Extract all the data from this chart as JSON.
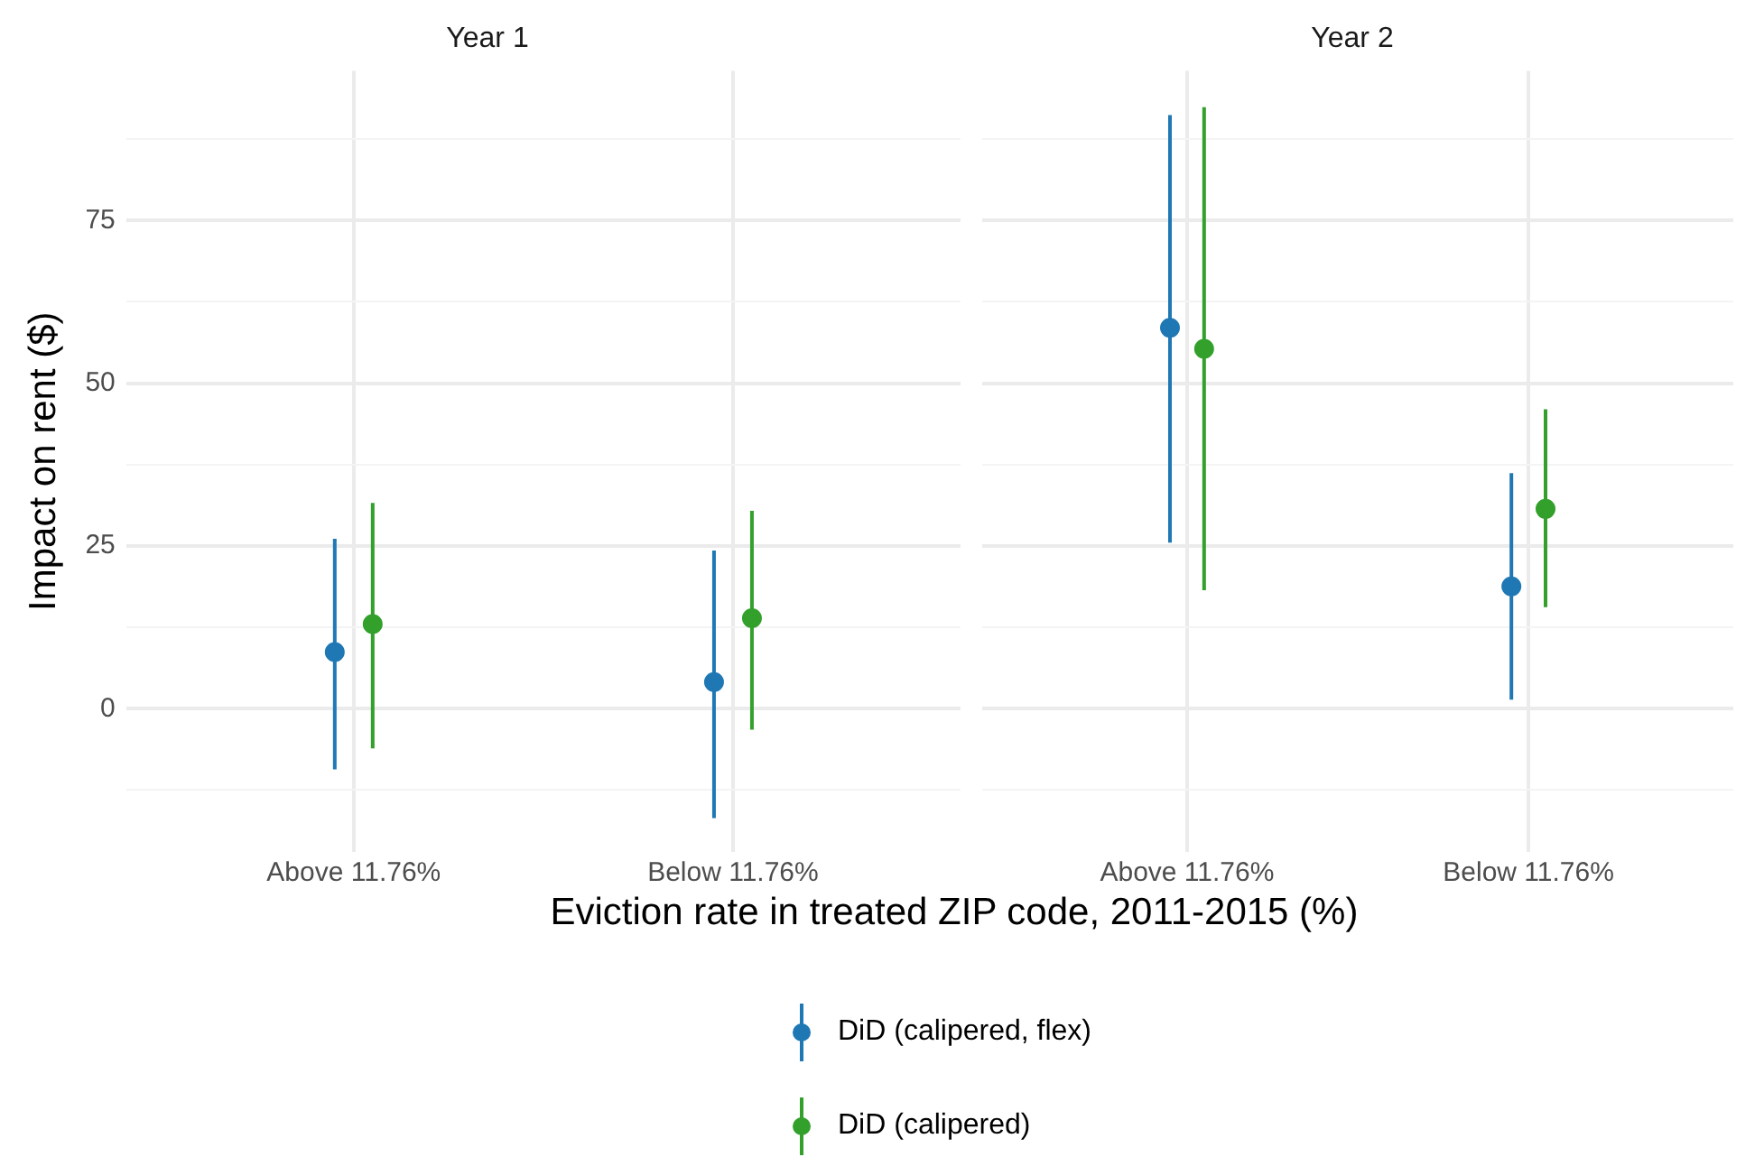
{
  "chart_data": [
    {
      "type": "scatter",
      "title": "Year 1",
      "xlabel": "Eviction rate in treated ZIP code, 2011-2015 (%)",
      "ylabel": "Impact on rent ($)",
      "categories": [
        "Above 11.76%",
        "Below 11.76%"
      ],
      "ylim": [
        -22,
        98
      ],
      "yticks": [
        {
          "value": -12.5,
          "label": null
        },
        0,
        {
          "value": 12.5,
          "label": null
        },
        25,
        {
          "value": 37.5,
          "label": null
        },
        50,
        {
          "value": 62.5,
          "label": null
        },
        75,
        {
          "value": 87.5,
          "label": null
        }
      ],
      "grid": true,
      "legend": "bottom",
      "marker": "circle",
      "series": [
        {
          "name": "DiD (calipered, flex)",
          "color": "#1f78b4",
          "values": [
            8.7,
            4.1
          ],
          "errors": [
            [
              -9.3,
              26.1
            ],
            [
              -16.8,
              24.3
            ]
          ]
        },
        {
          "name": "DiD (calipered)",
          "color": "#33a02c",
          "values": [
            13.0,
            13.9
          ],
          "errors": [
            [
              -6.1,
              31.6
            ],
            [
              -3.2,
              30.4
            ]
          ]
        }
      ]
    },
    {
      "type": "scatter",
      "title": "Year 2",
      "categories": [
        "Above 11.76%",
        "Below 11.76%"
      ],
      "ylim": [
        -22,
        98
      ],
      "yticks": [
        {
          "value": -12.5,
          "label": null
        },
        0,
        {
          "value": 12.5,
          "label": null
        },
        25,
        {
          "value": 37.5,
          "label": null
        },
        50,
        {
          "value": 62.5,
          "label": null
        },
        75,
        {
          "value": 87.5,
          "label": null
        }
      ],
      "grid": true,
      "tick_labels": "x",
      "marker": "circle",
      "series": [
        {
          "color": "#1f78b4",
          "values": [
            58.5,
            18.8
          ],
          "errors": [
            [
              25.5,
              91.2
            ],
            [
              1.4,
              36.2
            ]
          ]
        },
        {
          "color": "#33a02c",
          "values": [
            55.3,
            30.7
          ],
          "errors": [
            [
              18.2,
              92.4
            ],
            [
              15.6,
              46.0
            ]
          ]
        }
      ]
    }
  ]
}
